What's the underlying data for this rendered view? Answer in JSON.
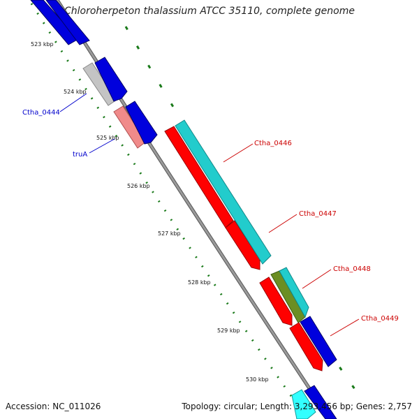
{
  "title": "Chloroherpeton thalassium ATCC 35110, complete genome",
  "accession": "Accession: NC_011026",
  "topology": "Topology: circular; Length: 3,293,456 bp; Genes: 2,757",
  "ticks": [
    "523 kbp",
    "524 kbp",
    "525 kbp",
    "526 kbp",
    "527 kbp",
    "528 kbp",
    "529 kbp",
    "530 kbp"
  ],
  "labels": {
    "ctha_0444": "Ctha_0444",
    "trua": "truA",
    "ctha_0446": "Ctha_0446",
    "ctha_0447": "Ctha_0447",
    "ctha_0448": "Ctha_0448",
    "ctha_0449": "Ctha_0449"
  },
  "colors": {
    "blue": "#0000dd",
    "grey": "#bbbbbb",
    "pink": "#f08080",
    "red": "#ff0000",
    "cyan": "#22cccc",
    "olive": "#6b8e23",
    "backbone": "#888888",
    "dots": "#1a7a1a",
    "label_left": "#0000cc",
    "label_right": "#cc0000"
  }
}
